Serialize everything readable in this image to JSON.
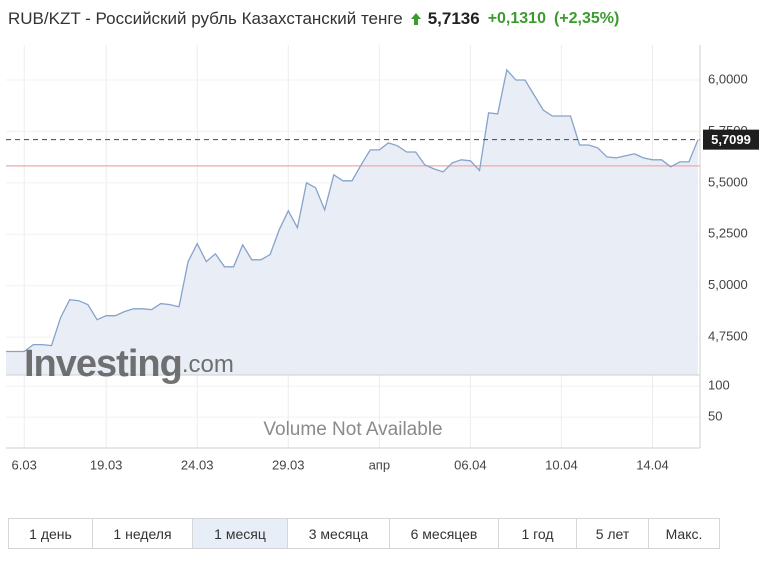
{
  "quote": {
    "pair_title": "RUB/KZT - Российский рубль Казахстанский тенге",
    "price": "5,7136",
    "change": "+0,1310",
    "change_percent": "(+2,35%)"
  },
  "watermark": {
    "brand": "Investing",
    "suffix": ".com"
  },
  "chart_data": [
    {
      "type": "area",
      "color": "#86a3c9",
      "fill": "#e9edf6",
      "grid": true,
      "categories": [
        null,
        null,
        "6.03",
        null,
        null,
        null,
        null,
        null,
        null,
        null,
        null,
        "19.03",
        null,
        null,
        null,
        null,
        null,
        null,
        null,
        null,
        null,
        "24.03",
        null,
        null,
        null,
        null,
        null,
        null,
        null,
        null,
        null,
        "29.03",
        null,
        null,
        null,
        null,
        null,
        null,
        null,
        null,
        null,
        "апр",
        null,
        null,
        null,
        null,
        null,
        null,
        null,
        null,
        null,
        "06.04",
        null,
        null,
        null,
        null,
        null,
        null,
        null,
        null,
        null,
        "10.04",
        null,
        null,
        null,
        null,
        null,
        null,
        null,
        null,
        null,
        "14.04",
        null,
        null,
        null,
        null,
        null
      ],
      "values": [
        4.68,
        4.68,
        4.68,
        4.714,
        4.714,
        4.709,
        4.845,
        4.932,
        4.927,
        4.908,
        4.835,
        4.854,
        4.854,
        4.874,
        4.888,
        4.888,
        4.884,
        4.913,
        4.908,
        4.898,
        5.117,
        5.204,
        5.117,
        5.155,
        5.092,
        5.092,
        5.199,
        5.126,
        5.126,
        5.151,
        5.272,
        5.364,
        5.282,
        5.5,
        5.476,
        5.369,
        5.539,
        5.51,
        5.51,
        5.587,
        5.66,
        5.66,
        5.694,
        5.68,
        5.65,
        5.65,
        5.587,
        5.568,
        5.553,
        5.597,
        5.612,
        5.607,
        5.56,
        5.84,
        5.835,
        6.049,
        6.0,
        6.0,
        5.927,
        5.854,
        5.825,
        5.825,
        5.825,
        5.684,
        5.684,
        5.67,
        5.626,
        5.621,
        5.631,
        5.641,
        5.621,
        5.612,
        5.612,
        5.578,
        5.602,
        5.602,
        5.7099
      ],
      "ylim": [
        4.566,
        6.17
      ],
      "yticks": [
        {
          "value": 4.75,
          "label": "4,7500"
        },
        {
          "value": 5,
          "label": "5,0000"
        },
        {
          "value": 5.25,
          "label": "5,2500"
        },
        {
          "value": 5.5,
          "label": "5,5000"
        },
        {
          "value": 5.75,
          "label": "5,7500"
        },
        {
          "value": 6,
          "label": "6,0000"
        }
      ],
      "current_value": {
        "value": 5.7099,
        "label": "5,7099"
      },
      "reference_line_value": 5.5826
    },
    {
      "type": "bar",
      "annotation": "Volume Not Available",
      "ylim": [
        0,
        118
      ],
      "yticks": [
        50,
        100
      ]
    }
  ],
  "range_buttons": {
    "labels": [
      "1 день",
      "1 неделя",
      "1 месяц",
      "3 месяца",
      "6 месяцев",
      "1 год",
      "5 лет",
      "Макс."
    ],
    "selected": 2
  }
}
